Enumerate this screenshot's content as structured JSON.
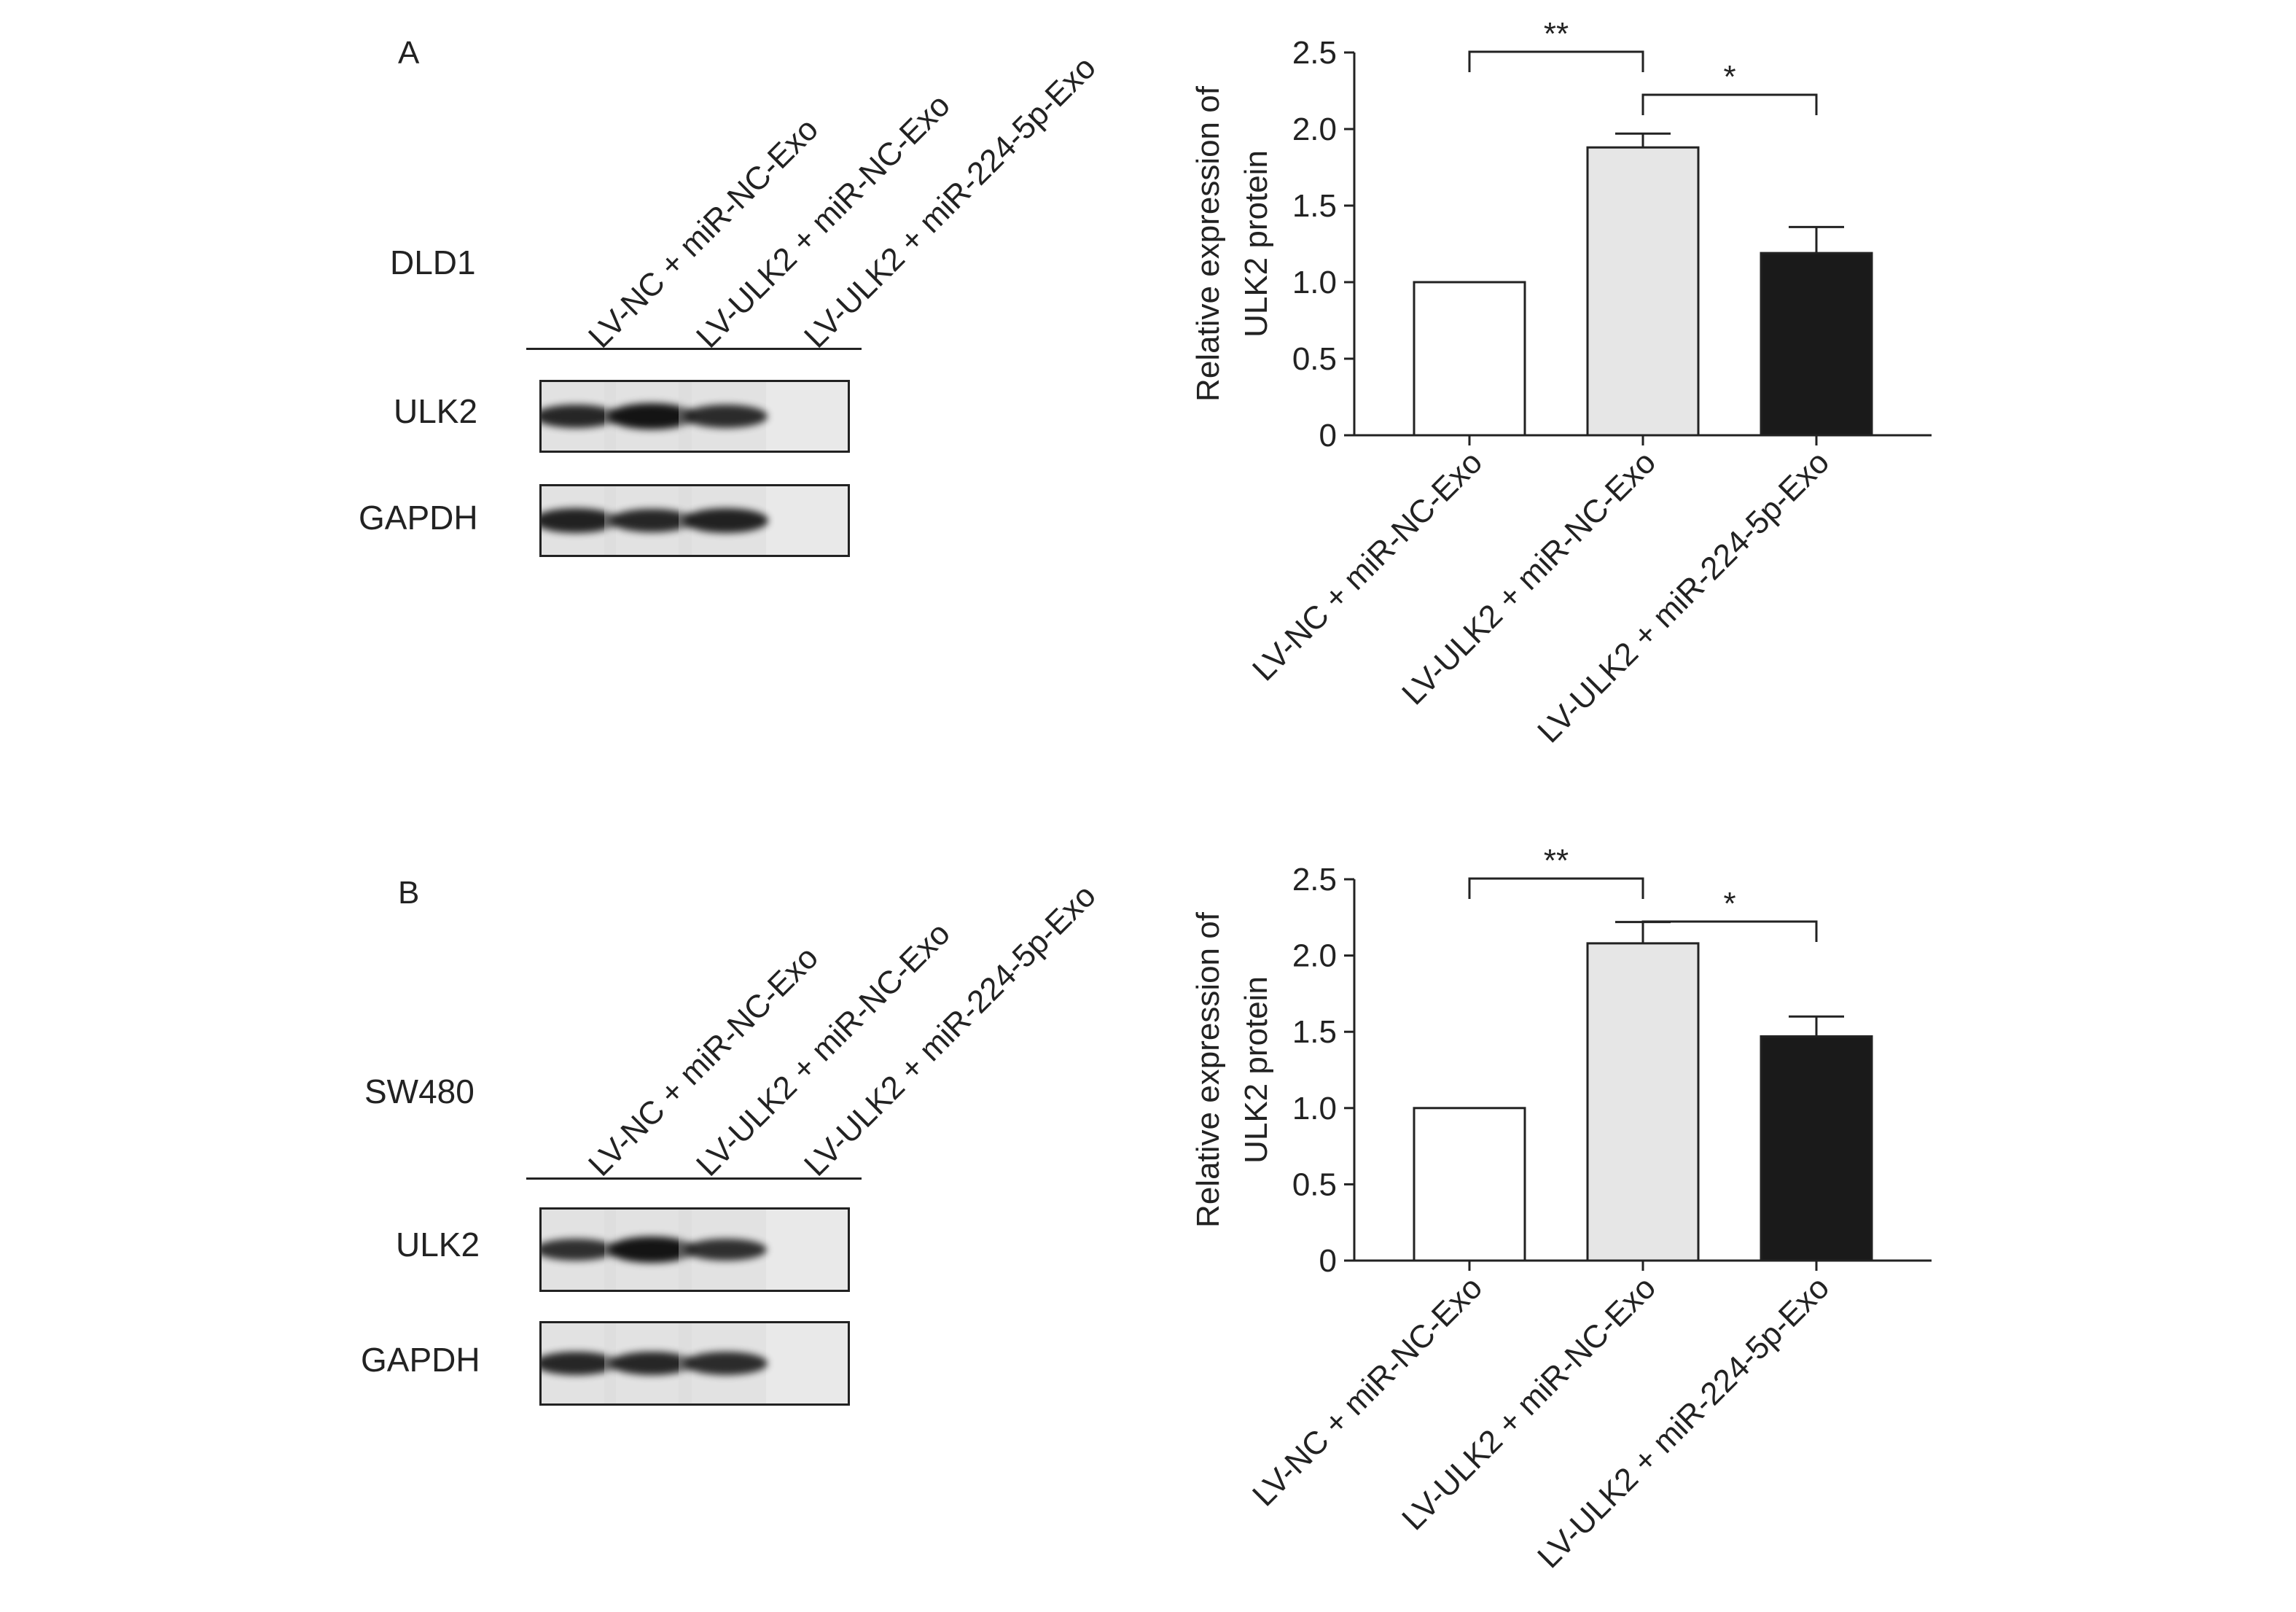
{
  "panels": [
    {
      "letter": "A",
      "cell_line": "DLD1",
      "lanes": [
        "LV-NC + miR-NC-Exo",
        "LV-ULK2 + miR-NC-Exo",
        "LV-ULK2 + miR-224-5p-Exo"
      ],
      "blots": [
        {
          "label": "ULK2",
          "band_intensity": [
            0.8,
            1.0,
            0.75
          ]
        },
        {
          "label": "GAPDH",
          "band_intensity": [
            0.85,
            0.8,
            0.85
          ]
        }
      ]
    },
    {
      "letter": "B",
      "cell_line": "SW480",
      "lanes": [
        "LV-NC + miR-NC-Exo",
        "LV-ULK2 + miR-NC-Exo",
        "LV-ULK2 + miR-224-5p-Exo"
      ],
      "blots": [
        {
          "label": "ULK2",
          "band_intensity": [
            0.7,
            1.0,
            0.7
          ]
        },
        {
          "label": "GAPDH",
          "band_intensity": [
            0.8,
            0.8,
            0.75
          ]
        }
      ]
    }
  ],
  "chart_data": [
    {
      "type": "bar",
      "categories": [
        "LV-NC + miR-NC-Exo",
        "LV-ULK2 + miR-NC-Exo",
        "LV-ULK2 + miR-224-5p-Exo"
      ],
      "values": [
        1.0,
        1.88,
        1.19
      ],
      "errors": [
        0,
        0.09,
        0.17
      ],
      "bar_colors": [
        "#ffffff",
        "#e6e6e6",
        "#1a1a1a"
      ],
      "ylabel_line1": "Relative expression of",
      "ylabel_line2": "ULK2 protein",
      "ylim": [
        0,
        2.5
      ],
      "yticks": [
        "0",
        "0.5",
        "1.0",
        "1.5",
        "2.0",
        "2.5"
      ],
      "ytick_values": [
        0,
        0.5,
        1.0,
        1.5,
        2.0,
        2.5
      ],
      "significance": [
        {
          "from": 0,
          "to": 1,
          "label": "**"
        },
        {
          "from": 1,
          "to": 2,
          "label": "*"
        }
      ]
    },
    {
      "type": "bar",
      "categories": [
        "LV-NC + miR-NC-Exo",
        "LV-ULK2 + miR-NC-Exo",
        "LV-ULK2 + miR-224-5p-Exo"
      ],
      "values": [
        1.0,
        2.08,
        1.47
      ],
      "errors": [
        0,
        0.14,
        0.13
      ],
      "bar_colors": [
        "#ffffff",
        "#e6e6e6",
        "#1a1a1a"
      ],
      "ylabel_line1": "Relative expression of",
      "ylabel_line2": "ULK2 protein",
      "ylim": [
        0,
        2.5
      ],
      "yticks": [
        "0",
        "0.5",
        "1.0",
        "1.5",
        "2.0",
        "2.5"
      ],
      "ytick_values": [
        0,
        0.5,
        1.0,
        1.5,
        2.0,
        2.5
      ],
      "significance": [
        {
          "from": 0,
          "to": 1,
          "label": "**"
        },
        {
          "from": 1,
          "to": 2,
          "label": "*"
        }
      ]
    }
  ]
}
